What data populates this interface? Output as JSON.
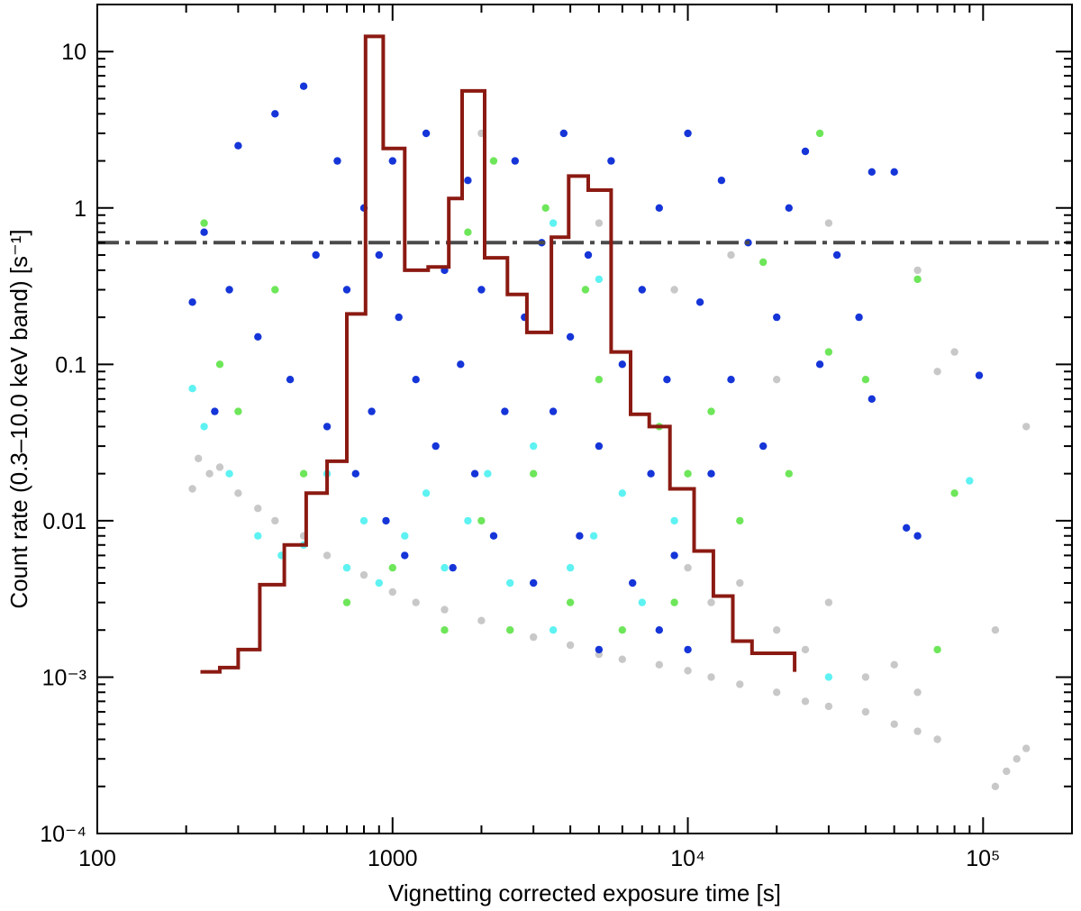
{
  "chart_data": {
    "type": "scatter",
    "title": "",
    "xlabel": "Vignetting corrected exposure time [s]",
    "ylabel": "Count rate (0.3–10.0 keV band) [s⁻¹]",
    "x_scale": "log",
    "y_scale": "log",
    "xlim": [
      100,
      200000
    ],
    "ylim": [
      0.0001,
      20
    ],
    "x_ticks": [
      {
        "value": 100,
        "label": "100"
      },
      {
        "value": 1000,
        "label": "1000"
      },
      {
        "value": 10000,
        "label": "10⁴"
      },
      {
        "value": 100000,
        "label": "10⁵"
      }
    ],
    "y_ticks": [
      {
        "value": 0.0001,
        "label": "10⁻⁴"
      },
      {
        "value": 0.001,
        "label": "10⁻³"
      },
      {
        "value": 0.01,
        "label": "0.01"
      },
      {
        "value": 0.1,
        "label": "0.1"
      },
      {
        "value": 1,
        "label": "1"
      },
      {
        "value": 10,
        "label": "10"
      }
    ],
    "threshold_line": {
      "y": 0.6,
      "style": "dash-dot",
      "color": "#4a4a4a"
    },
    "histogram": {
      "color": "#8b1a12",
      "start_y": 0.00108,
      "edges": [
        260,
        300,
        355,
        430,
        510,
        600,
        700,
        810,
        930,
        1100,
        1320,
        1550,
        1720,
        2050,
        2450,
        2850,
        3450,
        3950,
        4600,
        5500,
        6400,
        7400,
        8700,
        10500,
        12200,
        14200,
        16500,
        23000
      ],
      "values": [
        0.00115,
        0.0015,
        0.0039,
        0.007,
        0.015,
        0.024,
        0.21,
        12.5,
        2.4,
        0.4,
        0.42,
        1.15,
        5.6,
        0.48,
        0.28,
        0.16,
        0.65,
        1.6,
        1.3,
        0.12,
        0.048,
        0.04,
        0.016,
        0.0064,
        0.0033,
        0.0017,
        0.00142
      ]
    },
    "series": [
      {
        "name": "grey",
        "color": "#c8c8c8",
        "points": [
          [
            210,
            0.016
          ],
          [
            220,
            0.025
          ],
          [
            240,
            0.02
          ],
          [
            260,
            0.022
          ],
          [
            300,
            0.015
          ],
          [
            350,
            0.012
          ],
          [
            400,
            0.01
          ],
          [
            500,
            0.008
          ],
          [
            600,
            0.006
          ],
          [
            700,
            0.005
          ],
          [
            800,
            0.0045
          ],
          [
            1000,
            0.0035
          ],
          [
            1200,
            0.003
          ],
          [
            1500,
            0.0027
          ],
          [
            2000,
            0.0023
          ],
          [
            2500,
            0.002
          ],
          [
            3000,
            0.0018
          ],
          [
            4000,
            0.0016
          ],
          [
            5000,
            0.0014
          ],
          [
            6000,
            0.0013
          ],
          [
            8000,
            0.0012
          ],
          [
            10000,
            0.0011
          ],
          [
            12000,
            0.001
          ],
          [
            15000,
            0.0009
          ],
          [
            20000,
            0.0008
          ],
          [
            25000,
            0.0007
          ],
          [
            30000,
            0.00065
          ],
          [
            40000,
            0.0006
          ],
          [
            50000,
            0.0005
          ],
          [
            60000,
            0.00045
          ],
          [
            70000,
            0.0004
          ],
          [
            110000,
            0.0002
          ],
          [
            120000,
            0.00025
          ],
          [
            130000,
            0.0003
          ],
          [
            140000,
            0.00035
          ],
          [
            110000,
            0.002
          ],
          [
            140000,
            0.04
          ],
          [
            10000,
            0.005
          ],
          [
            12000,
            0.003
          ],
          [
            15000,
            0.004
          ],
          [
            20000,
            0.002
          ],
          [
            25000,
            0.0015
          ],
          [
            30000,
            0.003
          ],
          [
            40000,
            0.001
          ],
          [
            50000,
            0.0012
          ],
          [
            60000,
            0.0008
          ],
          [
            2000,
            3
          ],
          [
            5000,
            0.8
          ],
          [
            9000,
            0.3
          ],
          [
            14000,
            0.5
          ],
          [
            20000,
            0.08
          ],
          [
            30000,
            0.8
          ],
          [
            60000,
            0.4
          ],
          [
            80000,
            0.12
          ],
          [
            70000,
            0.09
          ]
        ]
      },
      {
        "name": "green",
        "color": "#6ee65a",
        "points": [
          [
            230,
            0.8
          ],
          [
            260,
            0.1
          ],
          [
            300,
            0.05
          ],
          [
            400,
            0.3
          ],
          [
            500,
            0.02
          ],
          [
            700,
            0.003
          ],
          [
            1000,
            0.005
          ],
          [
            1500,
            0.002
          ],
          [
            2000,
            0.01
          ],
          [
            2500,
            0.002
          ],
          [
            3000,
            0.02
          ],
          [
            4000,
            0.003
          ],
          [
            5000,
            0.08
          ],
          [
            6000,
            0.002
          ],
          [
            8000,
            0.04
          ],
          [
            9000,
            0.003
          ],
          [
            10000,
            0.02
          ],
          [
            12000,
            0.05
          ],
          [
            15000,
            0.01
          ],
          [
            18000,
            0.45
          ],
          [
            22000,
            0.02
          ],
          [
            28000,
            3
          ],
          [
            30000,
            0.12
          ],
          [
            40000,
            0.08
          ],
          [
            60000,
            0.35
          ],
          [
            70000,
            0.0015
          ],
          [
            80000,
            0.015
          ],
          [
            1800,
            0.7
          ],
          [
            2200,
            2
          ],
          [
            3300,
            1
          ],
          [
            4500,
            0.3
          ]
        ]
      },
      {
        "name": "cyan",
        "color": "#5ef2f2",
        "points": [
          [
            210,
            0.07
          ],
          [
            230,
            0.04
          ],
          [
            280,
            0.02
          ],
          [
            350,
            0.008
          ],
          [
            420,
            0.006
          ],
          [
            500,
            0.007
          ],
          [
            600,
            0.02
          ],
          [
            700,
            0.005
          ],
          [
            800,
            0.01
          ],
          [
            900,
            0.004
          ],
          [
            1100,
            0.008
          ],
          [
            1300,
            0.015
          ],
          [
            1500,
            0.005
          ],
          [
            1800,
            0.01
          ],
          [
            2100,
            0.02
          ],
          [
            2500,
            0.004
          ],
          [
            3000,
            0.03
          ],
          [
            3500,
            0.002
          ],
          [
            4000,
            0.005
          ],
          [
            4800,
            0.008
          ],
          [
            6000,
            0.015
          ],
          [
            7000,
            0.003
          ],
          [
            9000,
            0.01
          ],
          [
            30000,
            0.001
          ],
          [
            90000,
            0.018
          ],
          [
            3500,
            0.8
          ],
          [
            5000,
            0.35
          ]
        ]
      },
      {
        "name": "blue",
        "color": "#1535d8",
        "points": [
          [
            210,
            0.25
          ],
          [
            230,
            0.7
          ],
          [
            250,
            0.05
          ],
          [
            280,
            0.3
          ],
          [
            300,
            2.5
          ],
          [
            350,
            0.15
          ],
          [
            400,
            4
          ],
          [
            450,
            0.08
          ],
          [
            500,
            6
          ],
          [
            550,
            0.5
          ],
          [
            600,
            0.04
          ],
          [
            650,
            2
          ],
          [
            700,
            0.3
          ],
          [
            750,
            0.02
          ],
          [
            800,
            1
          ],
          [
            850,
            0.05
          ],
          [
            900,
            0.5
          ],
          [
            950,
            0.01
          ],
          [
            1000,
            2
          ],
          [
            1050,
            0.2
          ],
          [
            1100,
            0.006
          ],
          [
            1200,
            0.08
          ],
          [
            1300,
            3
          ],
          [
            1400,
            0.03
          ],
          [
            1500,
            0.4
          ],
          [
            1600,
            0.005
          ],
          [
            1700,
            0.1
          ],
          [
            1800,
            1.5
          ],
          [
            1900,
            0.02
          ],
          [
            2000,
            0.3
          ],
          [
            2200,
            0.008
          ],
          [
            2400,
            0.05
          ],
          [
            2600,
            2
          ],
          [
            2800,
            0.2
          ],
          [
            3000,
            0.004
          ],
          [
            3200,
            0.6
          ],
          [
            3500,
            0.05
          ],
          [
            3800,
            3
          ],
          [
            4000,
            0.15
          ],
          [
            4300,
            0.008
          ],
          [
            4600,
            0.5
          ],
          [
            5000,
            0.03
          ],
          [
            5500,
            2
          ],
          [
            6000,
            0.1
          ],
          [
            6500,
            0.004
          ],
          [
            7000,
            0.3
          ],
          [
            7500,
            0.02
          ],
          [
            8000,
            1
          ],
          [
            8500,
            0.08
          ],
          [
            9000,
            0.006
          ],
          [
            10000,
            3
          ],
          [
            11000,
            0.25
          ],
          [
            12000,
            0.02
          ],
          [
            13000,
            1.5
          ],
          [
            14000,
            0.08
          ],
          [
            16000,
            0.6
          ],
          [
            18000,
            0.03
          ],
          [
            20000,
            0.2
          ],
          [
            22000,
            1
          ],
          [
            25000,
            2.3
          ],
          [
            28000,
            0.1
          ],
          [
            32000,
            0.5
          ],
          [
            38000,
            0.2
          ],
          [
            42000,
            1.7
          ],
          [
            42000,
            0.06
          ],
          [
            50000,
            1.7
          ],
          [
            55000,
            0.009
          ],
          [
            60000,
            0.008
          ],
          [
            97000,
            0.085
          ],
          [
            5000,
            0.0015
          ],
          [
            8000,
            0.002
          ],
          [
            10000,
            0.0015
          ]
        ]
      }
    ]
  }
}
